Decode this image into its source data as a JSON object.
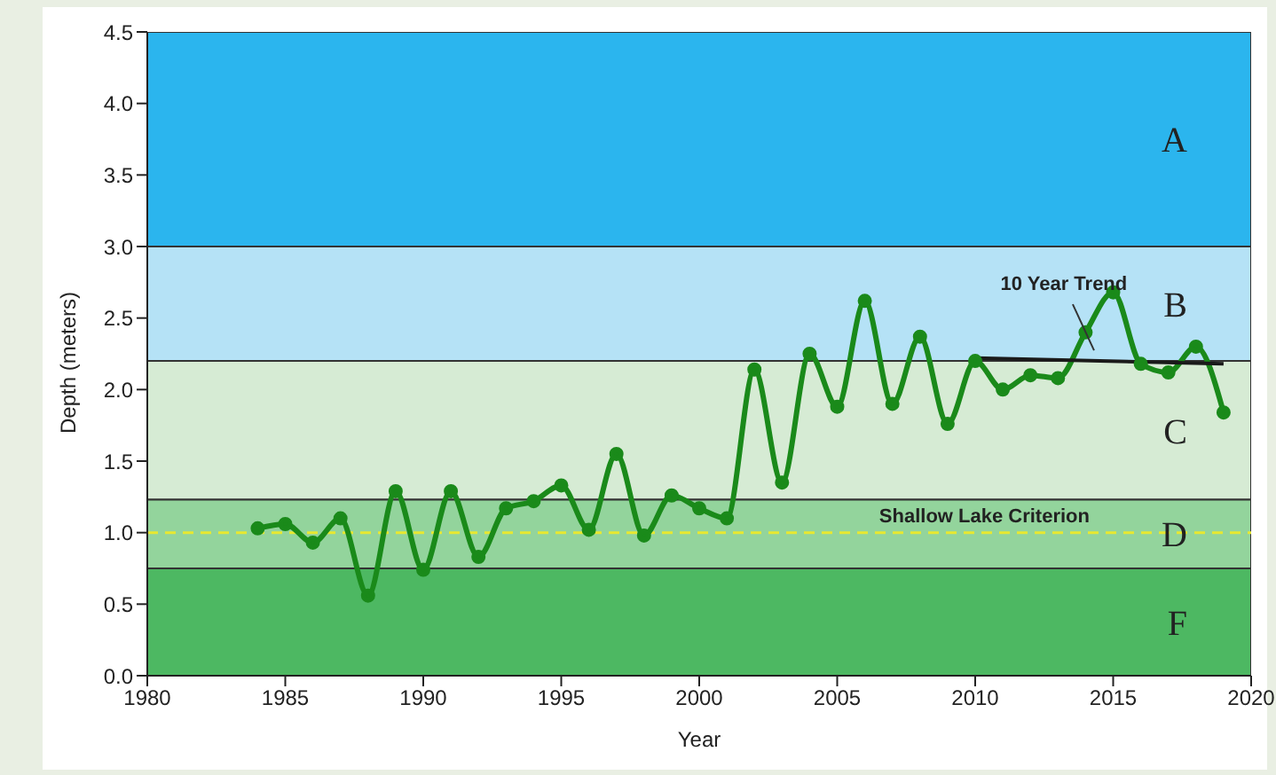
{
  "chart_data": {
    "type": "line",
    "xlabel": "Year",
    "ylabel": "Depth (meters)",
    "x": [
      1984,
      1985,
      1986,
      1987,
      1988,
      1989,
      1990,
      1991,
      1992,
      1993,
      1994,
      1995,
      1996,
      1997,
      1998,
      1999,
      2000,
      2001,
      2002,
      2003,
      2004,
      2005,
      2006,
      2007,
      2008,
      2009,
      2010,
      2011,
      2012,
      2013,
      2014,
      2015,
      2016,
      2017,
      2018,
      2019
    ],
    "series": [
      {
        "color": "#1a8a1a",
        "values": [
          1.03,
          1.06,
          0.93,
          1.1,
          0.56,
          1.29,
          0.74,
          1.29,
          0.83,
          1.17,
          1.22,
          1.33,
          1.02,
          1.55,
          0.98,
          1.26,
          1.17,
          1.1,
          2.14,
          1.35,
          2.25,
          1.88,
          2.62,
          1.9,
          2.37,
          1.76,
          2.2,
          2.0,
          2.1,
          2.08,
          2.4,
          2.68,
          2.18,
          2.12,
          2.3,
          1.84
        ]
      },
      {
        "type": "line",
        "color": "#1a1a1a",
        "x": [
          2010,
          2019
        ],
        "values": [
          2.22,
          2.18
        ],
        "marker": "none"
      }
    ],
    "xlim": [
      1980,
      2020
    ],
    "xticks": [
      1980,
      1985,
      1990,
      1995,
      2000,
      2005,
      2010,
      2015,
      2020
    ],
    "ylim": [
      0,
      4.5
    ],
    "yticks": [
      {
        "value": 0,
        "label": "0.0"
      },
      {
        "value": 0.5,
        "label": "0.5"
      },
      {
        "value": 1,
        "label": "1.0"
      },
      {
        "value": 1.5,
        "label": "1.5"
      },
      {
        "value": 2,
        "label": "2.0"
      },
      {
        "value": 2.5,
        "label": "2.5"
      },
      {
        "value": 3,
        "label": "3.0"
      },
      {
        "value": 3.5,
        "label": "3.5"
      },
      {
        "value": 4,
        "label": "4.0"
      },
      {
        "value": 4.5,
        "label": "4.5"
      }
    ],
    "bands": [
      {
        "axis": "y",
        "from": 3,
        "to": 4.5,
        "label": "A",
        "color": "#2bb5ee"
      },
      {
        "axis": "y",
        "from": 2.2,
        "to": 3,
        "label": "B",
        "color": "#b5e2f6"
      },
      {
        "axis": "y",
        "from": 1.23,
        "to": 2.2,
        "label": "C",
        "color": "#d6ebd4"
      },
      {
        "axis": "y",
        "from": 0.75,
        "to": 1.23,
        "label": "D",
        "color": "#93d49c"
      },
      {
        "axis": "y",
        "from": 0,
        "to": 0.75,
        "label": "F",
        "color": "#4db862"
      }
    ],
    "ref_lines": [
      {
        "axis": "y",
        "value": 1,
        "label": "Shallow Lake Criterion",
        "color": "#e8e830",
        "line_style": "dashed"
      }
    ],
    "annotations": [
      "10 Year Trend"
    ],
    "marker": "circle",
    "line_style": "solid",
    "grid": false
  }
}
